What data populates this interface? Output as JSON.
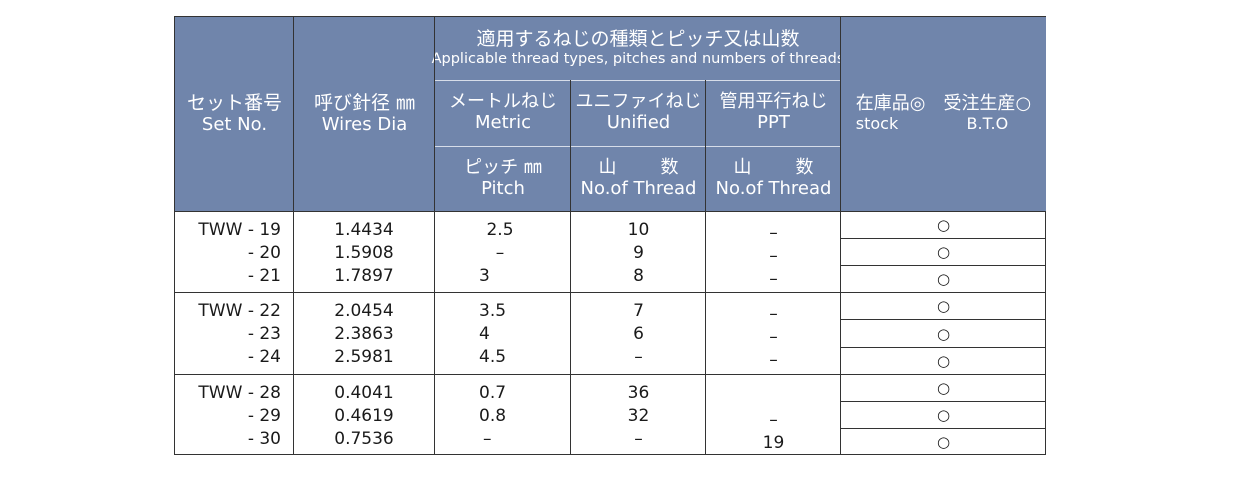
{
  "headers": {
    "set_no_jp": "セット番号",
    "set_no_en": "Set No.",
    "wires_jp": "呼び針径 ㎜",
    "wires_en": "Wires Dia",
    "thread_group_jp": "適用するねじの種類とピッチ又は山数",
    "thread_group_en": "Applicable thread types, pitches and numbers of threads",
    "metric_jp": "メートルねじ",
    "metric_en": "Metric",
    "unified_jp": "ユニファイねじ",
    "unified_en": "Unified",
    "ppt_jp": "管用平行ねじ",
    "ppt_en": "PPT",
    "pitch_jp": "ピッチ ㎜",
    "pitch_en": "Pitch",
    "thread_jp_a": "山",
    "thread_jp_b": "数",
    "thread_en": "No.of Thread",
    "ppt_thread_jp_a": "山",
    "ppt_thread_jp_b": "数",
    "ppt_thread_en": "No.of Thread",
    "stock_jp": "在庫品◎",
    "stock_en": "stock",
    "bto_jp": "受注生産○",
    "bto_en": "B.T.O"
  },
  "groups": [
    {
      "rows": [
        {
          "set": "TWW - 19",
          "dia": "1.4434",
          "pitch": "2.5",
          "unified": "10",
          "ppt": "–",
          "mark": "○"
        },
        {
          "set": "- 20",
          "dia": "1.5908",
          "pitch": "–",
          "unified": "9",
          "ppt": "–",
          "mark": "○"
        },
        {
          "set": "- 21",
          "dia": "1.7897",
          "pitch": "3",
          "unified": "8",
          "ppt": "–",
          "mark": "○"
        }
      ]
    },
    {
      "rows": [
        {
          "set": "TWW - 22",
          "dia": "2.0454",
          "pitch": "3.5",
          "unified": "7",
          "ppt": "–",
          "mark": "○"
        },
        {
          "set": "- 23",
          "dia": "2.3863",
          "pitch": "4",
          "unified": "6",
          "ppt": "–",
          "mark": "○"
        },
        {
          "set": "- 24",
          "dia": "2.5981",
          "pitch": "4.5",
          "unified": "–",
          "ppt": "–",
          "mark": "○"
        }
      ]
    },
    {
      "rows": [
        {
          "set": "TWW - 28",
          "dia": "0.4041",
          "pitch": "0.7",
          "unified": "36",
          "ppt": "",
          "mark": "○"
        },
        {
          "set": "- 29",
          "dia": "0.4619",
          "pitch": "0.8",
          "unified": "32",
          "ppt": "–",
          "mark": "○"
        },
        {
          "set": "- 30",
          "dia": "0.7536",
          "pitch": "–",
          "unified": "–",
          "ppt": "19",
          "mark": "○"
        }
      ]
    }
  ]
}
